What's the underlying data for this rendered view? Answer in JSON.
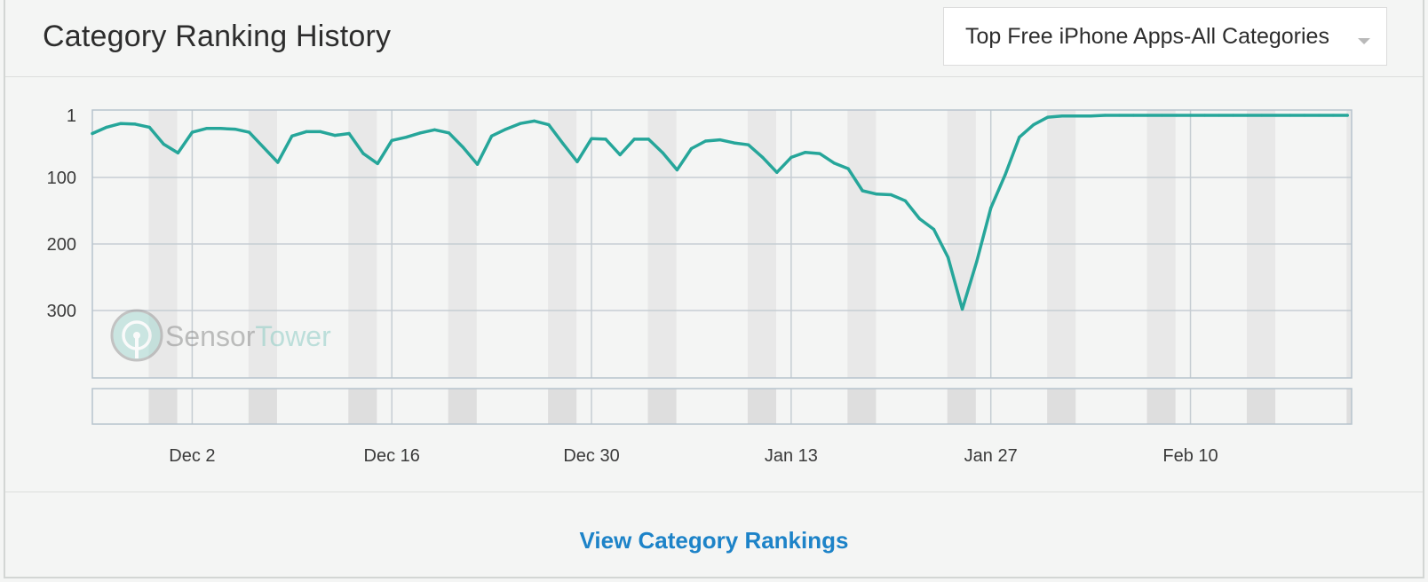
{
  "header": {
    "title": "Category Ranking History",
    "dropdown_value": "Top Free iPhone Apps-All Categories"
  },
  "footer": {
    "link_label": "View Category Rankings"
  },
  "watermark": {
    "brand_part1": "Sensor",
    "brand_part2": "Tower"
  },
  "colors": {
    "line": "#26a69a",
    "weekend_band": "#e8e8e8",
    "grid": "#c6cdd3",
    "link": "#1d83c8"
  },
  "chart_data": {
    "type": "line",
    "title": "",
    "xlabel": "",
    "ylabel": "",
    "y_inverted": true,
    "ylim": [
      1,
      400
    ],
    "yticks": [
      1,
      100,
      200,
      300
    ],
    "ytick_labels": [
      "1",
      "100",
      "200",
      "300"
    ],
    "x_start": "Nov 25",
    "x_end": "Feb 21",
    "xticks": [
      "Dec 2",
      "Dec 16",
      "Dec 30",
      "Jan 13",
      "Jan 27",
      "Feb 10"
    ],
    "weekend_bands": [
      "Nov 29-30",
      "Dec 6-7",
      "Dec 13-14",
      "Dec 20-21",
      "Dec 27-28",
      "Jan 3-4",
      "Jan 10-11",
      "Jan 17-18",
      "Jan 24-25",
      "Jan 31-Feb 1",
      "Feb 7-8",
      "Feb 14-15",
      "Feb 21"
    ],
    "series": [
      {
        "values": [
          {
            "x": "Nov 25",
            "y": 30
          },
          {
            "x": "Nov 26",
            "y": 20
          },
          {
            "x": "Nov 27",
            "y": 14
          },
          {
            "x": "Nov 28",
            "y": 15
          },
          {
            "x": "Nov 29",
            "y": 20
          },
          {
            "x": "Nov 30",
            "y": 47
          },
          {
            "x": "Dec 1",
            "y": 61
          },
          {
            "x": "Dec 2",
            "y": 28
          },
          {
            "x": "Dec 3",
            "y": 22
          },
          {
            "x": "Dec 4",
            "y": 22
          },
          {
            "x": "Dec 5",
            "y": 23
          },
          {
            "x": "Dec 6",
            "y": 28
          },
          {
            "x": "Dec 7",
            "y": 52
          },
          {
            "x": "Dec 8",
            "y": 76
          },
          {
            "x": "Dec 9",
            "y": 34
          },
          {
            "x": "Dec 10",
            "y": 27
          },
          {
            "x": "Dec 11",
            "y": 27
          },
          {
            "x": "Dec 12",
            "y": 33
          },
          {
            "x": "Dec 13",
            "y": 30
          },
          {
            "x": "Dec 14",
            "y": 62
          },
          {
            "x": "Dec 15",
            "y": 78
          },
          {
            "x": "Dec 16",
            "y": 41
          },
          {
            "x": "Dec 17",
            "y": 36
          },
          {
            "x": "Dec 18",
            "y": 29
          },
          {
            "x": "Dec 19",
            "y": 24
          },
          {
            "x": "Dec 20",
            "y": 29
          },
          {
            "x": "Dec 21",
            "y": 52
          },
          {
            "x": "Dec 22",
            "y": 79
          },
          {
            "x": "Dec 23",
            "y": 34
          },
          {
            "x": "Dec 24",
            "y": 23
          },
          {
            "x": "Dec 25",
            "y": 14
          },
          {
            "x": "Dec 26",
            "y": 10
          },
          {
            "x": "Dec 27",
            "y": 16
          },
          {
            "x": "Dec 28",
            "y": 46
          },
          {
            "x": "Dec 29",
            "y": 75
          },
          {
            "x": "Dec 30",
            "y": 38
          },
          {
            "x": "Dec 31",
            "y": 39
          },
          {
            "x": "Jan 1",
            "y": 64
          },
          {
            "x": "Jan 2",
            "y": 39
          },
          {
            "x": "Jan 3",
            "y": 39
          },
          {
            "x": "Jan 4",
            "y": 61
          },
          {
            "x": "Jan 5",
            "y": 88
          },
          {
            "x": "Jan 6",
            "y": 54
          },
          {
            "x": "Jan 7",
            "y": 42
          },
          {
            "x": "Jan 8",
            "y": 40
          },
          {
            "x": "Jan 9",
            "y": 45
          },
          {
            "x": "Jan 10",
            "y": 48
          },
          {
            "x": "Jan 11",
            "y": 68
          },
          {
            "x": "Jan 12",
            "y": 92
          },
          {
            "x": "Jan 13",
            "y": 68
          },
          {
            "x": "Jan 14",
            "y": 60
          },
          {
            "x": "Jan 15",
            "y": 62
          },
          {
            "x": "Jan 16",
            "y": 77
          },
          {
            "x": "Jan 17",
            "y": 86
          },
          {
            "x": "Jan 18",
            "y": 120
          },
          {
            "x": "Jan 19",
            "y": 125
          },
          {
            "x": "Jan 20",
            "y": 126
          },
          {
            "x": "Jan 21",
            "y": 135
          },
          {
            "x": "Jan 22",
            "y": 162
          },
          {
            "x": "Jan 23",
            "y": 178
          },
          {
            "x": "Jan 24",
            "y": 220
          },
          {
            "x": "Jan 25",
            "y": 298
          },
          {
            "x": "Jan 26",
            "y": 227
          },
          {
            "x": "Jan 27",
            "y": 146
          },
          {
            "x": "Jan 28",
            "y": 96
          },
          {
            "x": "Jan 29",
            "y": 36
          },
          {
            "x": "Jan 30",
            "y": 16
          },
          {
            "x": "Jan 31",
            "y": 4
          },
          {
            "x": "Feb 1",
            "y": 2
          },
          {
            "x": "Feb 2",
            "y": 2
          },
          {
            "x": "Feb 3",
            "y": 2
          },
          {
            "x": "Feb 4",
            "y": 1
          },
          {
            "x": "Feb 5",
            "y": 1
          },
          {
            "x": "Feb 6",
            "y": 1
          },
          {
            "x": "Feb 7",
            "y": 1
          },
          {
            "x": "Feb 8",
            "y": 1
          },
          {
            "x": "Feb 9",
            "y": 1
          },
          {
            "x": "Feb 10",
            "y": 1
          },
          {
            "x": "Feb 11",
            "y": 1
          },
          {
            "x": "Feb 12",
            "y": 1
          },
          {
            "x": "Feb 13",
            "y": 1
          },
          {
            "x": "Feb 14",
            "y": 1
          },
          {
            "x": "Feb 15",
            "y": 1
          },
          {
            "x": "Feb 16",
            "y": 1
          },
          {
            "x": "Feb 17",
            "y": 1
          },
          {
            "x": "Feb 18",
            "y": 1
          },
          {
            "x": "Feb 19",
            "y": 1
          },
          {
            "x": "Feb 20",
            "y": 1
          },
          {
            "x": "Feb 21",
            "y": 1
          }
        ]
      }
    ]
  }
}
